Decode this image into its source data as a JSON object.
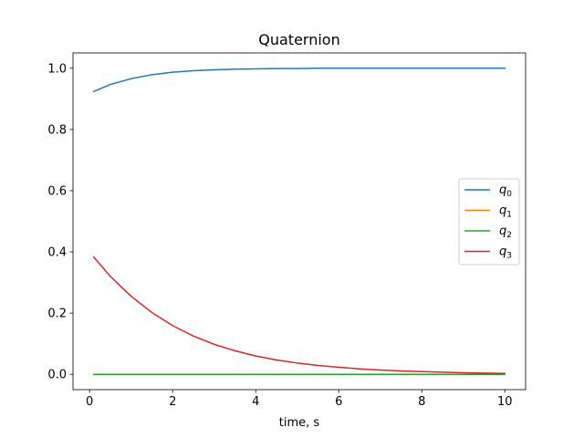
{
  "chart_data": {
    "type": "line",
    "title": "Quaternion",
    "xlabel": "time, s",
    "ylabel": "",
    "xlim": [
      -0.4,
      10.5
    ],
    "ylim": [
      -0.05,
      1.05
    ],
    "xticks": [
      0,
      2,
      4,
      6,
      8,
      10
    ],
    "xtick_labels": [
      "0",
      "2",
      "4",
      "6",
      "8",
      "10"
    ],
    "yticks": [
      0.0,
      0.2,
      0.4,
      0.6,
      0.8,
      1.0
    ],
    "ytick_labels": [
      "0.0",
      "0.2",
      "0.4",
      "0.6",
      "0.8",
      "1.0"
    ],
    "grid": false,
    "legend_position": "center-right",
    "x": [
      0.1,
      0.5,
      1.0,
      1.5,
      2.0,
      2.5,
      3.0,
      3.5,
      4.0,
      4.5,
      5.0,
      5.5,
      6.0,
      6.5,
      7.0,
      7.5,
      8.0,
      8.5,
      9.0,
      9.5,
      10.0
    ],
    "series": [
      {
        "name": "0",
        "legend_symbol": "q",
        "color": "#1f77b4",
        "values": [
          0.924,
          0.947,
          0.966,
          0.979,
          0.987,
          0.992,
          0.995,
          0.997,
          0.998,
          0.999,
          0.999,
          1.0,
          1.0,
          1.0,
          1.0,
          1.0,
          1.0,
          1.0,
          1.0,
          1.0,
          1.0
        ]
      },
      {
        "name": "1",
        "legend_symbol": "q",
        "color": "#ff7f0e",
        "values": [
          0.0,
          0.0,
          0.0,
          0.0,
          0.0,
          0.0,
          0.0,
          0.0,
          0.0,
          0.0,
          0.0,
          0.0,
          0.0,
          0.0,
          0.0,
          0.0,
          0.0,
          0.0,
          0.0,
          0.0,
          0.0
        ]
      },
      {
        "name": "2",
        "legend_symbol": "q",
        "color": "#2ca02c",
        "values": [
          0.0,
          0.0,
          0.0,
          0.0,
          0.0,
          0.0,
          0.0,
          0.0,
          0.0,
          0.0,
          0.0,
          0.0,
          0.0,
          0.0,
          0.0,
          0.0,
          0.0,
          0.0,
          0.0,
          0.0,
          0.0
        ]
      },
      {
        "name": "3",
        "legend_symbol": "q",
        "color": "#d62728",
        "values": [
          0.383,
          0.32,
          0.255,
          0.202,
          0.159,
          0.125,
          0.098,
          0.077,
          0.06,
          0.047,
          0.037,
          0.029,
          0.023,
          0.018,
          0.014,
          0.011,
          0.009,
          0.007,
          0.005,
          0.004,
          0.003
        ]
      }
    ]
  }
}
